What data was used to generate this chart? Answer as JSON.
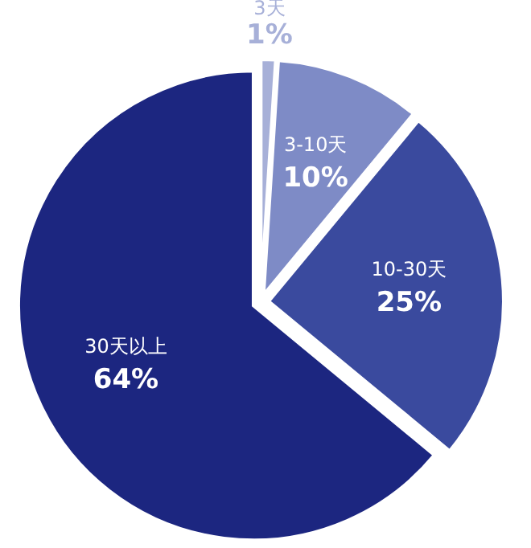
{
  "chart_data": {
    "type": "pie",
    "categories": [
      "3天",
      "3-10天",
      "10-30天",
      "30天以上"
    ],
    "values": [
      1,
      10,
      25,
      64
    ],
    "value_labels": [
      "1%",
      "10%",
      "25%",
      "64%"
    ],
    "colors": [
      "#a7b0d8",
      "#7e8bc6",
      "#3a4a9e",
      "#1c2680"
    ]
  }
}
